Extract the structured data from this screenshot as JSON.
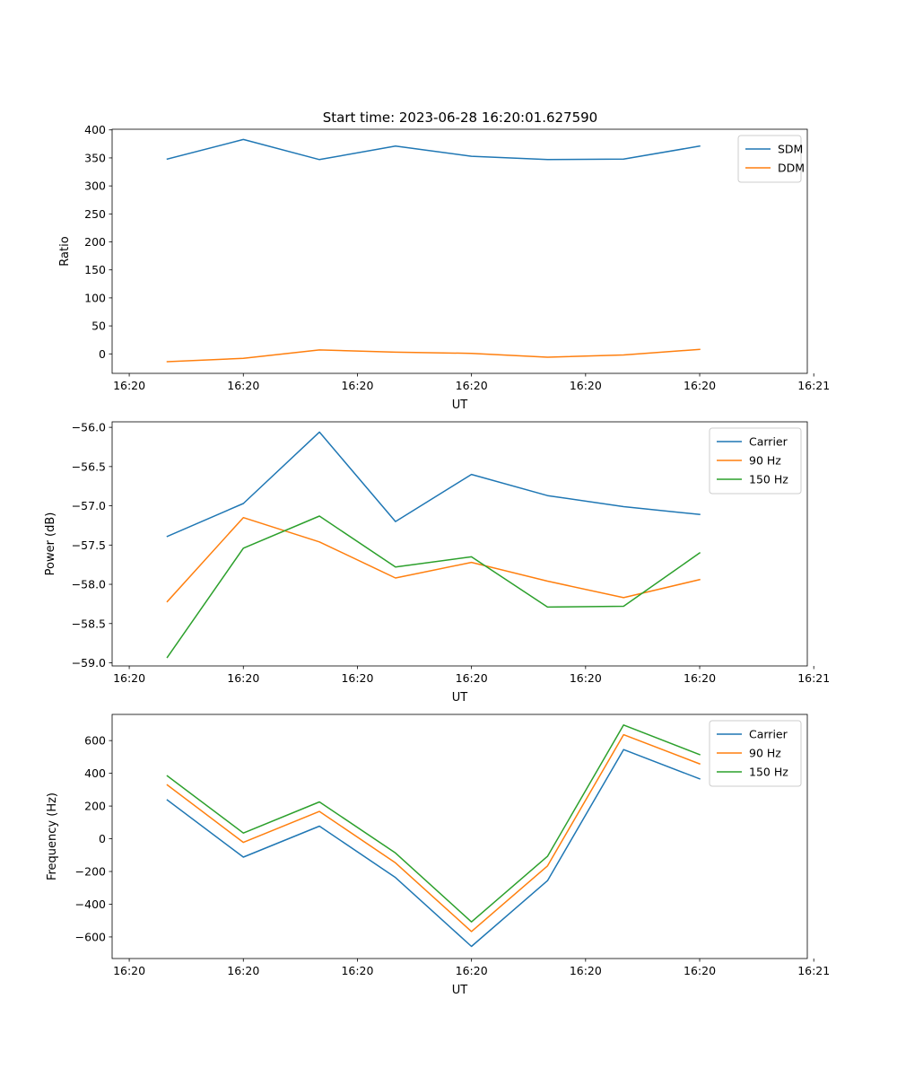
{
  "figure_title": "Start time: 2023-06-28 16:20:01.627590",
  "colors": {
    "blue": "#1f77b4",
    "orange": "#ff7f0e",
    "green": "#2ca02c",
    "axes": "#000000",
    "legend_border": "#cccccc"
  },
  "chart_data": [
    {
      "type": "line",
      "xlabel": "UT",
      "ylabel": "Ratio",
      "x": [
        1,
        2,
        3,
        4,
        5,
        6,
        7,
        8
      ],
      "xlim": [
        0.275,
        9.415
      ],
      "x_ticks": [
        0.5,
        2,
        3.5,
        5,
        6.5,
        8,
        9.5
      ],
      "x_tick_labels": [
        "16:20",
        "16:20",
        "16:20",
        "16:20",
        "16:20",
        "16:20",
        "16:21"
      ],
      "ylim": [
        -34.8,
        401.2
      ],
      "y_ticks": [
        0,
        50,
        100,
        150,
        200,
        250,
        300,
        350,
        400
      ],
      "y_tick_labels": [
        "0",
        "50",
        "100",
        "150",
        "200",
        "250",
        "300",
        "350",
        "400"
      ],
      "legend_position": "top-right",
      "series": [
        {
          "name": "SDM",
          "color": "#1f77b4",
          "values": [
            348,
            383,
            347,
            371,
            353,
            347,
            348,
            371
          ]
        },
        {
          "name": "DDM",
          "color": "#ff7f0e",
          "values": [
            -14,
            -8,
            7,
            3,
            1,
            -6,
            -2,
            8
          ]
        }
      ]
    },
    {
      "type": "line",
      "xlabel": "UT",
      "ylabel": "Power (dB)",
      "x": [
        1,
        2,
        3,
        4,
        5,
        6,
        7,
        8
      ],
      "xlim": [
        0.275,
        9.415
      ],
      "x_ticks": [
        0.5,
        2,
        3.5,
        5,
        6.5,
        8,
        9.5
      ],
      "x_tick_labels": [
        "16:20",
        "16:20",
        "16:20",
        "16:20",
        "16:20",
        "16:20",
        "16:21"
      ],
      "ylim": [
        -59.04,
        -55.93
      ],
      "y_ticks": [
        -59.0,
        -58.5,
        -58.0,
        -57.5,
        -57.0,
        -56.5,
        -56.0
      ],
      "y_tick_labels": [
        "−59.0",
        "−58.5",
        "−58.0",
        "−57.5",
        "−57.0",
        "−56.5",
        "−56.0"
      ],
      "legend_position": "top-right",
      "series": [
        {
          "name": "Carrier",
          "color": "#1f77b4",
          "values": [
            -57.39,
            -56.97,
            -56.06,
            -57.2,
            -56.6,
            -56.87,
            -57.01,
            -57.11
          ]
        },
        {
          "name": "90 Hz",
          "color": "#ff7f0e",
          "values": [
            -58.22,
            -57.15,
            -57.46,
            -57.92,
            -57.72,
            -57.96,
            -58.17,
            -57.94
          ]
        },
        {
          "name": "150 Hz",
          "color": "#2ca02c",
          "values": [
            -58.93,
            -57.54,
            -57.13,
            -57.78,
            -57.65,
            -58.29,
            -58.28,
            -57.6
          ]
        }
      ]
    },
    {
      "type": "line",
      "xlabel": "UT",
      "ylabel": "Frequency (Hz)",
      "x": [
        1,
        2,
        3,
        4,
        5,
        6,
        7,
        8
      ],
      "xlim": [
        0.275,
        9.415
      ],
      "x_ticks": [
        0.5,
        2,
        3.5,
        5,
        6.5,
        8,
        9.5
      ],
      "x_tick_labels": [
        "16:20",
        "16:20",
        "16:20",
        "16:20",
        "16:20",
        "16:20",
        "16:21"
      ],
      "ylim": [
        -732,
        760
      ],
      "y_ticks": [
        -600,
        -400,
        -200,
        0,
        200,
        400,
        600
      ],
      "y_tick_labels": [
        "−600",
        "−400",
        "−200",
        "0",
        "200",
        "400",
        "600"
      ],
      "legend_position": "top-right",
      "series": [
        {
          "name": "Carrier",
          "color": "#1f77b4",
          "values": [
            237,
            -112,
            77,
            -237,
            -658,
            -256,
            545,
            366
          ]
        },
        {
          "name": "90 Hz",
          "color": "#ff7f0e",
          "values": [
            329,
            -22,
            167,
            -147,
            -567,
            -166,
            636,
            458
          ]
        },
        {
          "name": "150 Hz",
          "color": "#2ca02c",
          "values": [
            384,
            35,
            225,
            -87,
            -508,
            -107,
            695,
            514
          ]
        }
      ]
    }
  ]
}
